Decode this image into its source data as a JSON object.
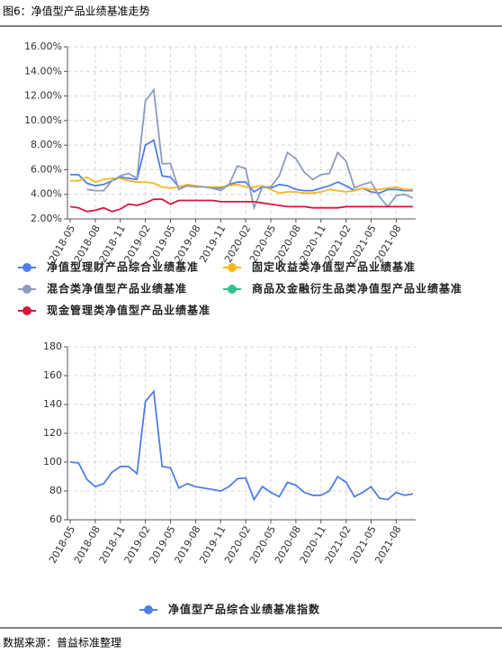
{
  "header": {
    "title": "图6：净值型产品业绩基准走势"
  },
  "footer": {
    "source": "数据来源：普益标准整理"
  },
  "chart_data": [
    {
      "type": "line",
      "categories": [
        "2018-05",
        null,
        null,
        "2018-08",
        null,
        null,
        "2018-11",
        null,
        null,
        "2019-02",
        null,
        null,
        "2019-05",
        null,
        null,
        "2019-08",
        null,
        null,
        "2019-11",
        null,
        null,
        "2020-02",
        null,
        null,
        "2020-05",
        null,
        null,
        "2020-08",
        null,
        null,
        "2020-11",
        null,
        null,
        "2021-02",
        null,
        null,
        "2021-05",
        null,
        null,
        "2021-08",
        null,
        null
      ],
      "series": [
        {
          "name": "净值型理财产品综合业绩基准",
          "color": "#4f7fe8",
          "values": [
            5.6,
            5.6,
            4.9,
            4.7,
            4.8,
            5.1,
            5.4,
            5.3,
            5.2,
            8.0,
            8.4,
            5.5,
            5.4,
            4.6,
            4.7,
            4.7,
            4.6,
            4.5,
            4.5,
            4.8,
            5.0,
            5.0,
            4.2,
            4.6,
            4.5,
            4.8,
            4.7,
            4.4,
            4.3,
            4.3,
            4.5,
            4.7,
            5.0,
            4.7,
            4.3,
            4.5,
            4.2,
            4.1,
            4.4,
            4.4,
            4.3,
            4.3
          ]
        },
        {
          "name": "固定收益类净值型产品业绩基准",
          "color": "#f5b820",
          "values": [
            5.1,
            5.1,
            5.4,
            5.0,
            5.2,
            5.3,
            5.3,
            5.1,
            5.0,
            5.0,
            4.9,
            4.6,
            4.5,
            4.6,
            4.8,
            4.7,
            4.6,
            4.6,
            4.6,
            4.7,
            4.8,
            4.6,
            4.6,
            4.7,
            4.4,
            4.1,
            4.2,
            4.2,
            4.1,
            4.1,
            4.2,
            4.4,
            4.3,
            4.2,
            4.3,
            4.5,
            4.4,
            4.4,
            4.5,
            4.6,
            4.4,
            4.4
          ]
        },
        {
          "name": "混合类净值型产品业绩基准",
          "color": "#8f9bbb",
          "values": [
            null,
            null,
            4.4,
            4.3,
            4.3,
            5.1,
            5.5,
            5.7,
            5.3,
            11.6,
            12.5,
            6.5,
            6.5,
            4.4,
            4.7,
            4.6,
            4.6,
            4.5,
            4.3,
            4.8,
            6.3,
            6.1,
            2.9,
            4.6,
            4.6,
            5.5,
            7.4,
            6.9,
            5.8,
            5.2,
            5.6,
            5.7,
            7.4,
            6.7,
            4.5,
            4.8,
            5.0,
            3.8,
            3.0,
            3.9,
            4.0,
            3.7
          ]
        },
        {
          "name": "商品及金融衍生品类净值型产品业绩基准",
          "color": "#2ec28f",
          "values": [
            null,
            null,
            null,
            null,
            null,
            null,
            null,
            null,
            null,
            null,
            null,
            null,
            null,
            null,
            null,
            null,
            null,
            null,
            null,
            null,
            null,
            null,
            null,
            null,
            null,
            null,
            null,
            null,
            null,
            null,
            null,
            null,
            null,
            null,
            null,
            null,
            null,
            null,
            null,
            null,
            null,
            null
          ]
        },
        {
          "name": "现金管理类净值型产品业绩基准",
          "color": "#d6173c",
          "values": [
            3.0,
            2.9,
            2.6,
            2.7,
            2.9,
            2.6,
            2.8,
            3.2,
            3.1,
            3.3,
            3.6,
            3.6,
            3.2,
            3.5,
            3.5,
            3.5,
            3.5,
            3.5,
            3.4,
            3.4,
            3.4,
            3.4,
            3.4,
            3.3,
            3.2,
            3.1,
            3.0,
            3.0,
            3.0,
            2.9,
            2.9,
            2.9,
            2.9,
            3.0,
            3.0,
            3.0,
            3.0,
            3.0,
            3.0,
            3.0,
            3.0,
            3.0
          ]
        }
      ],
      "ylim": [
        2,
        16
      ],
      "yticks": [
        {
          "value": 2,
          "label": "2.00%"
        },
        {
          "value": 4,
          "label": "4.00%"
        },
        {
          "value": 6,
          "label": "6.00%"
        },
        {
          "value": 8,
          "label": "8.00%"
        },
        {
          "value": 10,
          "label": "10.00%"
        },
        {
          "value": 12,
          "label": "12.00%"
        },
        {
          "value": 14,
          "label": "14.00%"
        },
        {
          "value": 16,
          "label": "16.00%"
        }
      ],
      "grid": true
    },
    {
      "type": "line",
      "categories": [
        "2018-05",
        null,
        null,
        "2018-08",
        null,
        null,
        "2018-11",
        null,
        null,
        "2019-02",
        null,
        null,
        "2019-05",
        null,
        null,
        "2019-08",
        null,
        null,
        "2019-11",
        null,
        null,
        "2020-02",
        null,
        null,
        "2020-05",
        null,
        null,
        "2020-08",
        null,
        null,
        "2020-11",
        null,
        null,
        "2021-02",
        null,
        null,
        "2021-05",
        null,
        null,
        "2021-08",
        null,
        null
      ],
      "series": [
        {
          "name": "净值型产品综合业绩基准指数",
          "color": "#4f7fe8",
          "values": [
            100,
            99.5,
            88,
            83,
            85,
            93,
            97,
            97,
            92,
            142,
            149,
            97,
            96,
            82,
            85,
            83,
            82,
            81,
            80,
            83,
            88.5,
            89,
            74,
            83,
            79,
            76,
            86,
            84,
            79,
            77,
            77,
            80,
            90,
            86,
            76,
            79,
            83,
            75,
            74,
            79,
            77,
            78
          ]
        }
      ],
      "ylim": [
        60,
        180
      ],
      "yticks": [
        60,
        80,
        100,
        120,
        140,
        160,
        180
      ],
      "grid": true
    }
  ]
}
